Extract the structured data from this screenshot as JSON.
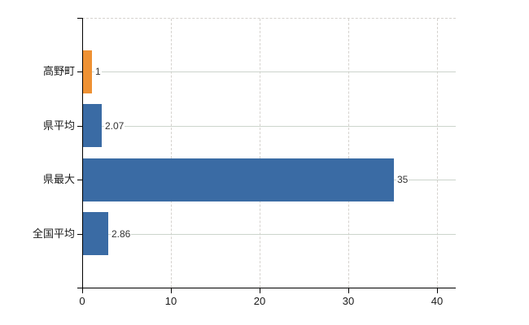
{
  "chart_data": {
    "type": "bar",
    "orientation": "horizontal",
    "title": "",
    "xlabel": "",
    "ylabel": "",
    "categories": [
      "高野町",
      "県平均",
      "県最大",
      "全国平均"
    ],
    "values": [
      1,
      2.07,
      35,
      2.86
    ],
    "value_labels": [
      "1",
      "2.07",
      "35",
      "2.86"
    ],
    "bar_colors": [
      "#ee9133",
      "#3a6ba4",
      "#3a6ba4",
      "#3a6ba4"
    ],
    "x_tick_values": [
      0,
      10,
      20,
      30,
      40
    ],
    "x_tick_labels": [
      "0",
      "10",
      "20",
      "30",
      "40"
    ],
    "xlim": [
      0,
      42.1
    ],
    "grid": true,
    "legend": "none",
    "colors": {
      "bar_default": "#3a6ba4",
      "bar_highlight": "#ee9133",
      "horizontal_gridline": "#ccd4cc",
      "vertical_gridline": "#d5d2ce",
      "axis": "#000000",
      "value_text": "#333333",
      "tick_text": "#1a1a1a",
      "background": "#ffffff"
    }
  }
}
